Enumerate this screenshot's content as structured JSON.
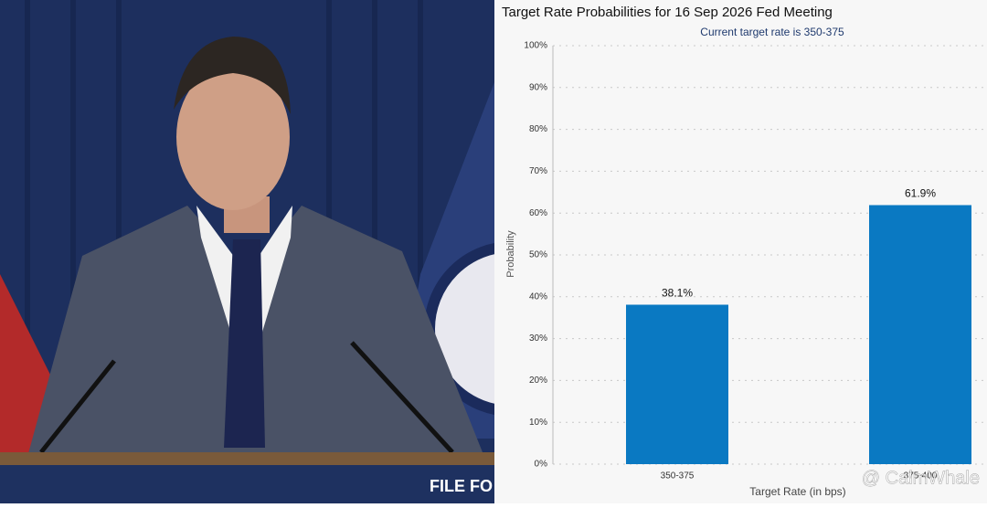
{
  "photo": {
    "podium_text": "FILE FO"
  },
  "watermark": "@ CalmWhale",
  "chart_data": {
    "type": "bar",
    "title": "Target Rate Probabilities for 16 Sep 2026 Fed Meeting",
    "subtitle": "Current target rate is 350-375",
    "x_label": "Target Rate (in bps)",
    "y_label": "Probability",
    "categories": [
      "350-375",
      "375-400"
    ],
    "values": [
      38.1,
      61.9
    ],
    "value_labels": [
      "38.1%",
      "61.9%"
    ],
    "color": "#0a79c2",
    "ylim": [
      0,
      100
    ],
    "yticks": [
      {
        "value": 0,
        "label": "0%"
      },
      {
        "value": 10,
        "label": "10%"
      },
      {
        "value": 20,
        "label": "20%"
      },
      {
        "value": 30,
        "label": "30%"
      },
      {
        "value": 40,
        "label": "40%"
      },
      {
        "value": 50,
        "label": "50%"
      },
      {
        "value": 60,
        "label": "60%"
      },
      {
        "value": 70,
        "label": "70%"
      },
      {
        "value": 80,
        "label": "80%"
      },
      {
        "value": 90,
        "label": "90%"
      },
      {
        "value": 100,
        "label": "100%"
      }
    ],
    "grid": true
  }
}
